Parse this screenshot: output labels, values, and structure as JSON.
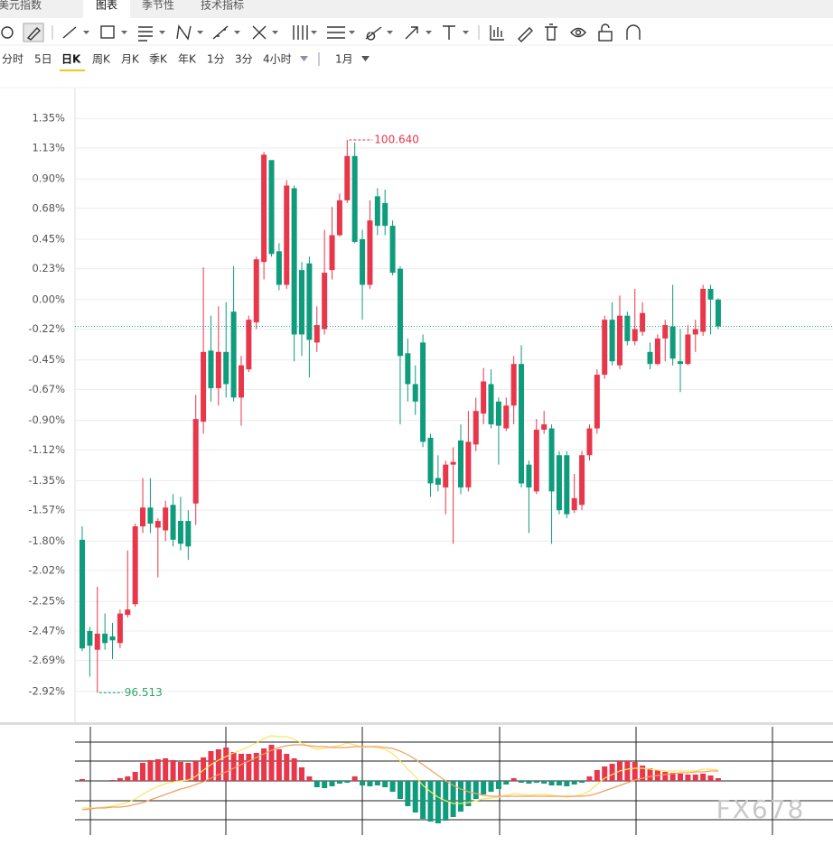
{
  "header": {
    "tabs": [
      "美元指数",
      "图表",
      "季节性",
      "技术指标"
    ],
    "active_tab": 1
  },
  "periods": {
    "items": [
      "分时",
      "5日",
      "日K",
      "周K",
      "月K",
      "季K",
      "年K",
      "1分",
      "3分",
      "4小时"
    ],
    "active": 2,
    "range": "1月"
  },
  "watermark": "FX678",
  "chart_data": [
    {
      "type": "candlestick",
      "up_color": "#e8364a",
      "down_color": "#0e9c7c",
      "last_line_color": "#1a9d86",
      "ylim": [
        -3.15,
        1.56
      ],
      "yticks": [
        {
          "value": 1.35,
          "label": "1.35%"
        },
        {
          "value": 1.13,
          "label": "1.13%"
        },
        {
          "value": 0.9,
          "label": "0.90%"
        },
        {
          "value": 0.68,
          "label": "0.68%"
        },
        {
          "value": 0.45,
          "label": "0.45%"
        },
        {
          "value": 0.23,
          "label": "0.23%"
        },
        {
          "value": 0,
          "label": "0.00%"
        },
        {
          "value": -0.22,
          "label": "-0.22%"
        },
        {
          "value": -0.45,
          "label": "-0.45%"
        },
        {
          "value": -0.67,
          "label": "-0.67%"
        },
        {
          "value": -0.9,
          "label": "-0.90%"
        },
        {
          "value": -1.12,
          "label": "-1.12%"
        },
        {
          "value": -1.35,
          "label": "-1.35%"
        },
        {
          "value": -1.57,
          "label": "-1.57%"
        },
        {
          "value": -1.8,
          "label": "-1.80%"
        },
        {
          "value": -2.02,
          "label": "-2.02%"
        },
        {
          "value": -2.25,
          "label": "-2.25%"
        },
        {
          "value": -2.47,
          "label": "-2.47%"
        },
        {
          "value": -2.69,
          "label": "-2.69%"
        },
        {
          "value": -2.92,
          "label": "-2.92%"
        }
      ],
      "max_label": "100.640",
      "min_label": "96.513",
      "grid": true,
      "candles": [
        [
          -1.79,
          -1.69,
          -2.62,
          -2.6
        ],
        [
          -2.47,
          -2.44,
          -2.81,
          -2.58
        ],
        [
          -2.61,
          -2.14,
          -2.93,
          -2.49
        ],
        [
          -2.49,
          -2.34,
          -2.61,
          -2.56
        ],
        [
          -2.51,
          -2.41,
          -2.68,
          -2.54
        ],
        [
          -2.56,
          -2.31,
          -2.6,
          -2.34
        ],
        [
          -2.35,
          -1.87,
          -2.37,
          -2.31
        ],
        [
          -2.27,
          -1.67,
          -2.29,
          -1.69
        ],
        [
          -1.69,
          -1.33,
          -1.74,
          -1.55
        ],
        [
          -1.55,
          -1.33,
          -1.74,
          -1.67
        ],
        [
          -1.7,
          -1.63,
          -2.07,
          -1.65
        ],
        [
          -1.72,
          -1.5,
          -1.8,
          -1.55
        ],
        [
          -1.53,
          -1.45,
          -1.84,
          -1.79
        ],
        [
          -1.65,
          -1.47,
          -1.87,
          -1.82
        ],
        [
          -1.65,
          -1.57,
          -1.94,
          -1.84
        ],
        [
          -1.52,
          -0.71,
          -1.68,
          -0.89
        ],
        [
          -0.91,
          0.24,
          -1.0,
          -0.39
        ],
        [
          -0.38,
          -0.12,
          -0.76,
          -0.66
        ],
        [
          -0.66,
          -0.05,
          -0.79,
          -0.39
        ],
        [
          -0.39,
          -0.02,
          -0.73,
          -0.63
        ],
        [
          -0.09,
          0.25,
          -0.76,
          -0.73
        ],
        [
          -0.73,
          -0.42,
          -0.94,
          -0.49
        ],
        [
          -0.52,
          -0.12,
          -0.54,
          -0.15
        ],
        [
          -0.17,
          0.32,
          -0.22,
          0.3
        ],
        [
          0.28,
          1.1,
          0.15,
          1.08
        ],
        [
          1.04,
          1.02,
          0.32,
          0.34
        ],
        [
          0.36,
          0.42,
          0.07,
          0.11
        ],
        [
          0.11,
          0.89,
          0.08,
          0.85
        ],
        [
          0.83,
          0.85,
          -0.46,
          -0.26
        ],
        [
          0.22,
          0.28,
          -0.42,
          -0.26
        ],
        [
          0.27,
          0.32,
          -0.58,
          -0.3
        ],
        [
          -0.32,
          -0.05,
          -0.39,
          -0.19
        ],
        [
          -0.22,
          0.52,
          -0.26,
          0.2
        ],
        [
          0.22,
          0.69,
          0.15,
          0.48
        ],
        [
          0.48,
          0.79,
          0.47,
          0.74
        ],
        [
          0.74,
          1.19,
          0.72,
          1.07
        ],
        [
          1.07,
          1.17,
          0.42,
          0.43
        ],
        [
          0.45,
          0.52,
          -0.15,
          0.11
        ],
        [
          0.11,
          0.74,
          0.08,
          0.59
        ],
        [
          0.77,
          0.83,
          0.48,
          0.55
        ],
        [
          0.72,
          0.82,
          0.48,
          0.55
        ],
        [
          0.55,
          0.59,
          0.18,
          0.2
        ],
        [
          0.23,
          0.25,
          -0.93,
          -0.42
        ],
        [
          -0.4,
          -0.29,
          -0.76,
          -0.63
        ],
        [
          -0.63,
          -0.49,
          -0.86,
          -0.76
        ],
        [
          -0.32,
          -0.26,
          -1.1,
          -1.06
        ],
        [
          -1.03,
          -1.0,
          -1.47,
          -1.37
        ],
        [
          -1.33,
          -1.16,
          -1.43,
          -1.38
        ],
        [
          -1.4,
          -1.2,
          -1.6,
          -1.23
        ],
        [
          -1.23,
          -1.1,
          -1.82,
          -1.21
        ],
        [
          -1.05,
          -0.93,
          -1.45,
          -1.4
        ],
        [
          -1.4,
          -0.83,
          -1.43,
          -1.06
        ],
        [
          -1.08,
          -0.73,
          -1.13,
          -0.83
        ],
        [
          -0.85,
          -0.51,
          -0.93,
          -0.61
        ],
        [
          -0.63,
          -0.52,
          -0.96,
          -0.93
        ],
        [
          -0.76,
          -0.73,
          -1.23,
          -0.94
        ],
        [
          -0.96,
          -0.73,
          -0.98,
          -0.79
        ],
        [
          -0.79,
          -0.42,
          -0.93,
          -0.48
        ],
        [
          -0.48,
          -0.34,
          -1.4,
          -1.37
        ],
        [
          -1.23,
          -1.2,
          -1.74,
          -1.4
        ],
        [
          -1.43,
          -0.89,
          -1.45,
          -0.97
        ],
        [
          -0.97,
          -0.83,
          -1.0,
          -0.93
        ],
        [
          -0.96,
          -0.93,
          -1.82,
          -1.43
        ],
        [
          -1.16,
          -1.13,
          -1.6,
          -1.57
        ],
        [
          -1.16,
          -1.13,
          -1.63,
          -1.6
        ],
        [
          -1.57,
          -1.3,
          -1.59,
          -1.48
        ],
        [
          -1.53,
          -1.13,
          -1.57,
          -1.16
        ],
        [
          -1.16,
          -0.93,
          -1.2,
          -0.96
        ],
        [
          -0.96,
          -0.52,
          -1.0,
          -0.56
        ],
        [
          -0.56,
          -0.12,
          -0.59,
          -0.15
        ],
        [
          -0.15,
          -0.02,
          -0.49,
          -0.46
        ],
        [
          -0.49,
          0.03,
          -0.52,
          -0.12
        ],
        [
          -0.12,
          -0.09,
          -0.34,
          -0.31
        ],
        [
          -0.31,
          0.08,
          -0.34,
          -0.22
        ],
        [
          -0.24,
          -0.02,
          -0.27,
          -0.1
        ],
        [
          -0.39,
          -0.32,
          -0.52,
          -0.48
        ],
        [
          -0.48,
          -0.26,
          -0.49,
          -0.29
        ],
        [
          -0.29,
          -0.15,
          -0.46,
          -0.19
        ],
        [
          -0.2,
          0.11,
          -0.49,
          -0.44
        ],
        [
          -0.46,
          -0.22,
          -0.69,
          -0.48
        ],
        [
          -0.48,
          -0.19,
          -0.49,
          -0.26
        ],
        [
          -0.26,
          -0.15,
          -0.39,
          -0.22
        ],
        [
          -0.24,
          0.11,
          -0.27,
          0.08
        ],
        [
          0.08,
          0.11,
          -0.26,
          0.0
        ],
        [
          0.0,
          0.01,
          -0.22,
          -0.2
        ]
      ]
    },
    {
      "type": "macd",
      "up_color": "#e8364a",
      "down_color": "#0e9c7c",
      "ylim": [
        -6,
        6
      ],
      "histogram": [
        0.2,
        0,
        0,
        0,
        0.1,
        0.3,
        0.5,
        1.0,
        2.0,
        2.3,
        2.4,
        2.5,
        2.3,
        2.1,
        2.0,
        2.2,
        2.6,
        3.3,
        3.5,
        3.7,
        3.2,
        3.0,
        3.0,
        3.1,
        3.6,
        4.0,
        3.5,
        3.0,
        2.5,
        1.5,
        0.5,
        -0.7,
        -0.8,
        -0.6,
        -0.3,
        -0.2,
        0.5,
        -0.5,
        -0.6,
        -0.5,
        -0.7,
        -1.2,
        -2.0,
        -2.8,
        -3.5,
        -4.2,
        -4.5,
        -4.7,
        -4.4,
        -4.0,
        -3.4,
        -2.8,
        -2.0,
        -1.5,
        -1.2,
        -0.9,
        -0.4,
        0.3,
        -0.2,
        -0.3,
        -0.2,
        -0.3,
        -0.5,
        -0.5,
        -0.6,
        -0.4,
        -0.2,
        0.5,
        1.2,
        1.6,
        1.9,
        2.2,
        2.2,
        2.1,
        1.7,
        1.4,
        1.2,
        1.0,
        0.9,
        0.8,
        0.7,
        0.7,
        0.8,
        0.6,
        0.3
      ],
      "lines": [
        {
          "color": "#f5e663",
          "values": [
            -3.0,
            -3.0,
            -3.0,
            -2.9,
            -2.8,
            -2.6,
            -2.4,
            -2.0,
            -1.5,
            -1.0,
            -0.6,
            -0.3,
            -0.1,
            0.0,
            0.1,
            0.5,
            1.2,
            1.8,
            2.3,
            2.7,
            3.1,
            3.4,
            3.8,
            4.2,
            4.7,
            5.0,
            4.9,
            4.9,
            4.6,
            4.2,
            3.8,
            3.5,
            3.6,
            3.8,
            3.9,
            4.2,
            4.0,
            3.7,
            3.8,
            3.7,
            3.5,
            3.0,
            2.2,
            1.3,
            0.5,
            -0.5,
            -1.2,
            -1.8,
            -2.2,
            -2.5,
            -2.5,
            -2.4,
            -2.2,
            -2.0,
            -1.9,
            -1.8,
            -1.6,
            -1.4,
            -1.5,
            -1.6,
            -1.5,
            -1.5,
            -1.6,
            -1.7,
            -1.8,
            -1.7,
            -1.5,
            -1.1,
            -0.4,
            0.3,
            0.7,
            1.1,
            1.3,
            1.4,
            1.4,
            1.3,
            1.2,
            1.1,
            1.1,
            1.1,
            1.1,
            1.1,
            1.3,
            1.3,
            1.2
          ]
        },
        {
          "color": "#f0a060",
          "values": [
            -3.2,
            -3.1,
            -3.0,
            -3.0,
            -2.9,
            -2.9,
            -2.8,
            -2.6,
            -2.4,
            -2.1,
            -1.8,
            -1.5,
            -1.2,
            -0.9,
            -0.7,
            -0.4,
            -0.1,
            0.3,
            0.7,
            1.0,
            1.4,
            1.8,
            2.2,
            2.6,
            3.0,
            3.4,
            3.7,
            3.9,
            4.0,
            4.0,
            3.9,
            3.8,
            3.8,
            3.7,
            3.7,
            3.7,
            3.8,
            3.8,
            3.8,
            3.8,
            3.7,
            3.6,
            3.3,
            2.9,
            2.4,
            1.8,
            1.2,
            0.6,
            0.0,
            -0.5,
            -0.9,
            -1.2,
            -1.4,
            -1.6,
            -1.7,
            -1.7,
            -1.7,
            -1.7,
            -1.7,
            -1.7,
            -1.7,
            -1.7,
            -1.7,
            -1.7,
            -1.7,
            -1.7,
            -1.7,
            -1.6,
            -1.4,
            -1.1,
            -0.8,
            -0.5,
            -0.2,
            0.1,
            0.3,
            0.5,
            0.6,
            0.7,
            0.8,
            0.9,
            0.9,
            1.0,
            1.0,
            1.1,
            1.1
          ]
        }
      ]
    }
  ]
}
